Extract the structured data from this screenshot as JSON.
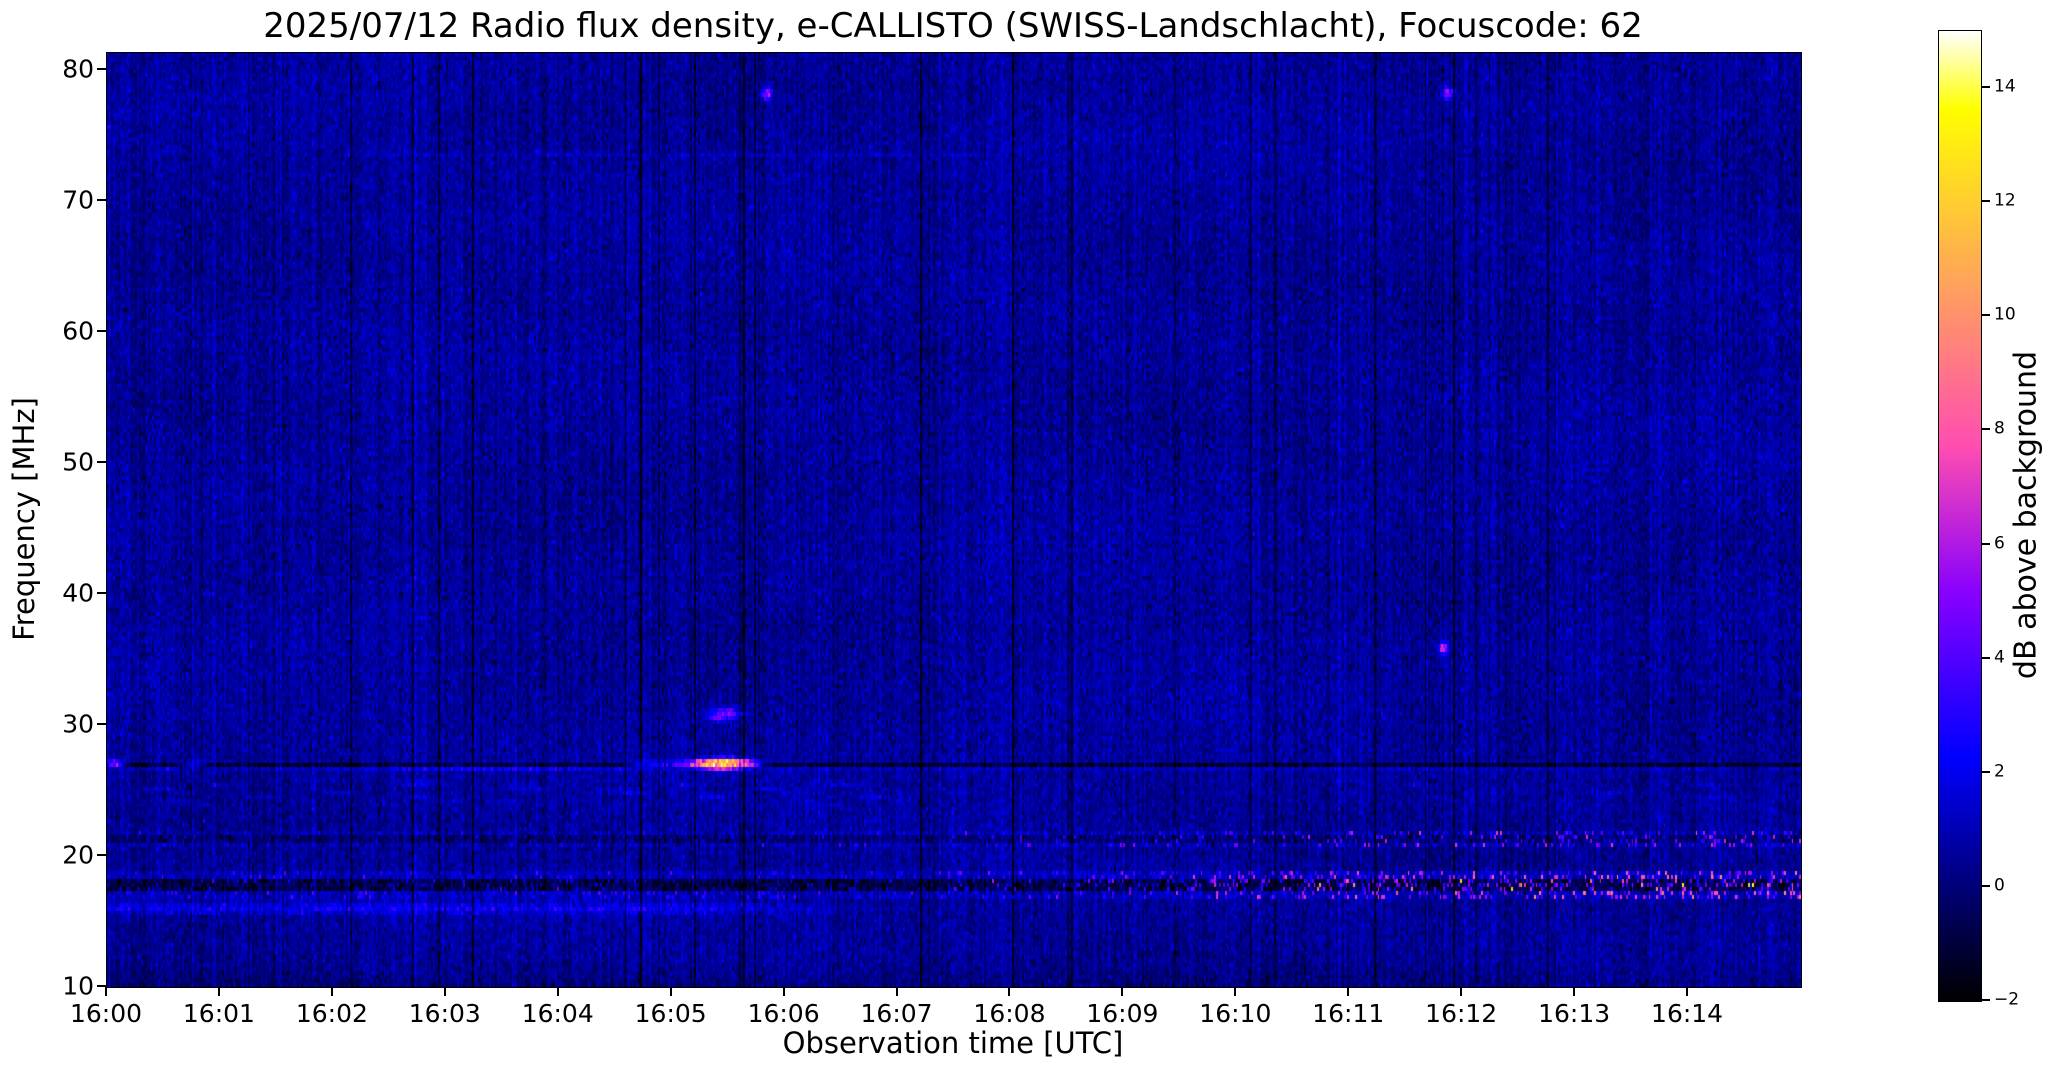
{
  "title": "2025/07/12  Radio flux density, e-CALLISTO (SWISS-Landschlacht), Focuscode: 62",
  "chart_data": {
    "type": "heatmap",
    "title": "2025/07/12  Radio flux density, e-CALLISTO (SWISS-Landschlacht), Focuscode: 62",
    "xlabel": "Observation time [UTC]",
    "ylabel": "Frequency [MHz]",
    "x_ticks": [
      "16:00",
      "16:01",
      "16:02",
      "16:03",
      "16:04",
      "16:05",
      "16:06",
      "16:07",
      "16:08",
      "16:09",
      "16:10",
      "16:11",
      "16:12",
      "16:13",
      "16:14"
    ],
    "x_range_minutes": [
      0,
      15
    ],
    "y_ticks": [
      10,
      20,
      30,
      40,
      50,
      60,
      70,
      80
    ],
    "y_range_mhz": [
      10,
      81.3
    ],
    "grid": false,
    "legend": false,
    "colorbar": {
      "label": "dB above background",
      "ticks": [
        -2,
        0,
        2,
        4,
        6,
        8,
        10,
        12,
        14
      ],
      "vmin": -2,
      "vmax": 15,
      "colormap": "gnuplot2 (black-blue-violet-pink-orange-yellow-white)",
      "stops": [
        [
          -2,
          "#000000"
        ],
        [
          0,
          "#000078"
        ],
        [
          2,
          "#0000f0"
        ],
        [
          4,
          "#5200ff"
        ],
        [
          6,
          "#b01ae6"
        ],
        [
          8,
          "#ff56a9"
        ],
        [
          10,
          "#ff916d"
        ],
        [
          12,
          "#ffcc30"
        ],
        [
          14,
          "#ffff42"
        ],
        [
          15,
          "#ffffff"
        ]
      ]
    },
    "features": {
      "background": {
        "mean": 0.55,
        "noise_sd": 0.5,
        "column_noise_sd": 0.28,
        "dark_column_prob": 0.03,
        "bright_column_prob": 0.015
      },
      "bands": [
        {
          "name": "27mhz-interference-dark-line",
          "type": "line",
          "f": 26.92,
          "width": 0.34,
          "amp": -1.7
        },
        {
          "name": "26.6mhz-soft-line",
          "type": "line",
          "f": 26.55,
          "width": 0.3,
          "amp": 0.55
        },
        {
          "name": "73mhz-faint-trace",
          "type": "line",
          "f": 73.6,
          "width": 0.3,
          "amp": 0.45,
          "t_start": 2.3,
          "t_end": 7.6
        },
        {
          "name": "ionospheric-wisps-24-26mhz",
          "type": "wisps",
          "f_lo": 23.3,
          "f_hi": 26.35,
          "amp": 0.85
        },
        {
          "name": "21mhz-speckle-band",
          "type": "speckle",
          "f_lo": 20.55,
          "f_hi": 21.85,
          "amp_base": 1.1,
          "amp_spike": 4.8,
          "spike_prob": 0.22,
          "right_boost": 1.0,
          "dark_line_f": 21.2,
          "dark_line_amp": -1.1,
          "dark_line_width": 0.3,
          "dark_speckle_prob": 0.1
        },
        {
          "name": "17-18mhz-speckle-band",
          "type": "speckle",
          "f_lo": 16.7,
          "f_hi": 18.7,
          "amp_base": 1.5,
          "amp_spike": 6.2,
          "spike_prob": 0.28,
          "right_boost": 1.0,
          "dark_line_f": 17.8,
          "dark_line_amp": -2.3,
          "dark_line_width": 0.55,
          "breakthrough_prob": 0.05
        },
        {
          "name": "16mhz-left-soft-band",
          "type": "soft",
          "f": 16.0,
          "f_sigma": 0.45,
          "amp": 1.5,
          "t_end_min": 5.5
        },
        {
          "name": "bottom-edge-darkening",
          "type": "soft",
          "f": 9.8,
          "f_sigma": 1.5,
          "amp": -0.5
        }
      ],
      "events": [
        {
          "name": "radio-burst-27mhz-1605",
          "type": "burst",
          "t_start": 4.55,
          "t_end": 5.85,
          "peak_t": 5.45,
          "f": 27.0,
          "f_width": 0.5,
          "peak_amp": 14.5,
          "base_amp": 3.5
        },
        {
          "name": "blob-31mhz-1605",
          "type": "blob",
          "t_center": 5.48,
          "t_sigma": 0.14,
          "f": 30.95,
          "f_sigma": 0.42,
          "amp": 4.2
        },
        {
          "name": "blob-30.5mhz-1605",
          "type": "blob",
          "t_center": 5.4,
          "t_sigma": 0.09,
          "f": 30.5,
          "f_sigma": 0.28,
          "amp": 2.8
        },
        {
          "name": "streak-26.7mhz-1603",
          "type": "blob",
          "t_center": 3.4,
          "t_sigma": 1.0,
          "f": 26.65,
          "f_sigma": 0.18,
          "amp": 1.3
        },
        {
          "name": "dot-78mhz-1606",
          "type": "dot",
          "t": 5.84,
          "f": 78.2,
          "amp": 5.5,
          "t_sigma": 0.045,
          "f_sigma": 0.5
        },
        {
          "name": "dot-78mhz-1612",
          "type": "dot",
          "t": 11.87,
          "f": 78.2,
          "amp": 5.0,
          "t_sigma": 0.045,
          "f_sigma": 0.5
        },
        {
          "name": "dot-36mhz-1612",
          "type": "dot",
          "t": 11.83,
          "f": 35.9,
          "amp": 6.5,
          "t_sigma": 0.04,
          "f_sigma": 0.45
        },
        {
          "name": "dash-27mhz-1600",
          "type": "dot",
          "t": 0.07,
          "f": 27.0,
          "amp": 6.5,
          "t_sigma": 0.08,
          "f_sigma": 0.22
        },
        {
          "name": "dash-27mhz-1600b",
          "type": "dot",
          "t": 0.78,
          "f": 27.0,
          "amp": 3.5,
          "t_sigma": 0.12,
          "f_sigma": 0.2
        }
      ]
    }
  }
}
